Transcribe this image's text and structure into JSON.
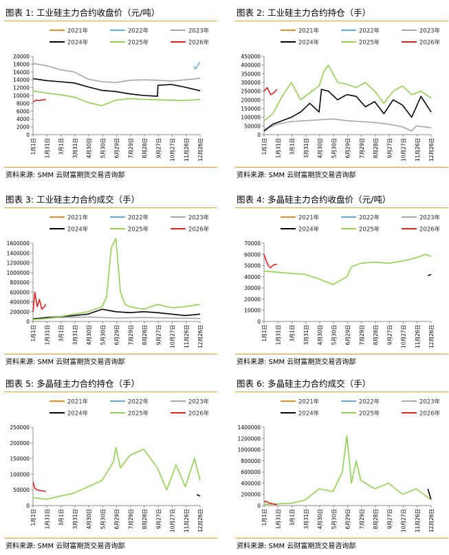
{
  "source_text": "资料来源: SMM 云财富期货交易咨询部",
  "x_ticks": [
    "1月1日",
    "1月31日",
    "3月1日",
    "3月31日",
    "4月30日",
    "5月30日",
    "6月29日",
    "7月29日",
    "8月28日",
    "9月27日",
    "10月27日",
    "11月26日",
    "12月26日"
  ],
  "legend": [
    {
      "name": "2021年",
      "color": "#f08a24"
    },
    {
      "name": "2022年",
      "color": "#6aa7dd"
    },
    {
      "name": "2023年",
      "color": "#a6a6a6"
    },
    {
      "name": "2024年",
      "color": "#000000"
    },
    {
      "name": "2025年",
      "color": "#92d050"
    },
    {
      "name": "2026年",
      "color": "#e01f1f"
    }
  ],
  "charts": [
    {
      "title": "图表 1:  工业硅主力合约收盘价（元/吨）"
    },
    {
      "title": "图表 2:  工业硅主力合约持仓（手）"
    },
    {
      "title": "图表 3:  工业硅主力合约成交（手）"
    },
    {
      "title": "图表 4:  多晶硅主力合约收盘价（元/吨）"
    },
    {
      "title": "图表 5:  多晶硅主力合约持仓（手）"
    },
    {
      "title": "图表 6:  多晶硅主力合约成交（手）"
    }
  ],
  "chart_data": [
    {
      "type": "line",
      "title": "图表 1:  工业硅主力合约收盘价（元/吨）",
      "ylim": [
        0,
        20000
      ],
      "y_ticks": [
        "0",
        "2000",
        "4000",
        "6000",
        "8000",
        "10000",
        "12000",
        "14000",
        "16000",
        "18000",
        "20000"
      ],
      "x_ticks": [
        "1月1日",
        "1月31日",
        "3月1日",
        "3月31日",
        "4月30日",
        "5月30日",
        "6月29日",
        "7月29日",
        "8月28日",
        "9月27日",
        "10月27日",
        "11月26日",
        "12月26日"
      ],
      "series": [
        {
          "name": "2022年",
          "color": "#6aa7dd",
          "x": [
            349,
            352,
            355,
            358,
            361
          ],
          "values": [
            17500,
            16800,
            17200,
            17800,
            18500
          ]
        },
        {
          "name": "2023年",
          "color": "#a6a6a6",
          "x": [
            1,
            30,
            60,
            90,
            120,
            150,
            180,
            210,
            240,
            270,
            300,
            330,
            362
          ],
          "values": [
            18200,
            17600,
            16600,
            16000,
            14200,
            13500,
            13300,
            13900,
            14000,
            13900,
            13700,
            14000,
            14400
          ]
        },
        {
          "name": "2024年",
          "color": "#000000",
          "x": [
            1,
            30,
            60,
            90,
            120,
            150,
            180,
            210,
            240,
            270,
            271,
            300,
            330,
            362
          ],
          "values": [
            14300,
            13800,
            13500,
            13200,
            12200,
            11300,
            11000,
            10400,
            10000,
            9800,
            12600,
            12800,
            12100,
            11200
          ]
        },
        {
          "name": "2025年",
          "color": "#92d050",
          "x": [
            1,
            30,
            60,
            90,
            120,
            150,
            180,
            210,
            240,
            270,
            300,
            330,
            362
          ],
          "values": [
            11200,
            10600,
            10200,
            9600,
            8200,
            7400,
            8800,
            9200,
            9000,
            8900,
            8800,
            8700,
            9000
          ]
        },
        {
          "name": "2026年",
          "color": "#e01f1f",
          "x": [
            1,
            8,
            15,
            22,
            29
          ],
          "values": [
            8400,
            8800,
            8700,
            8900,
            8900
          ]
        }
      ]
    },
    {
      "type": "line",
      "title": "图表 2:  工业硅主力合约持仓（手）",
      "ylim": [
        0,
        450000
      ],
      "y_ticks": [
        "0",
        "50000",
        "100000",
        "150000",
        "200000",
        "250000",
        "300000",
        "350000",
        "400000",
        "450000"
      ],
      "x_ticks": [
        "1月1日",
        "1月31日",
        "3月1日",
        "3月31日",
        "4月30日",
        "5月30日",
        "6月29日",
        "7月29日",
        "8月28日",
        "9月27日",
        "10月27日",
        "11月26日",
        "12月26日"
      ],
      "series": [
        {
          "name": "2023年",
          "color": "#a6a6a6",
          "x": [
            1,
            30,
            60,
            90,
            120,
            150,
            180,
            210,
            240,
            270,
            300,
            320,
            330,
            362
          ],
          "values": [
            30000,
            60000,
            75000,
            80000,
            85000,
            90000,
            80000,
            75000,
            70000,
            60000,
            45000,
            20000,
            50000,
            40000
          ]
        },
        {
          "name": "2024年",
          "color": "#000000",
          "x": [
            1,
            20,
            40,
            60,
            80,
            100,
            120,
            125,
            140,
            160,
            180,
            200,
            220,
            240,
            260,
            280,
            300,
            320,
            340,
            362
          ],
          "values": [
            20000,
            60000,
            80000,
            100000,
            130000,
            180000,
            130000,
            260000,
            250000,
            200000,
            230000,
            220000,
            160000,
            190000,
            120000,
            200000,
            170000,
            100000,
            220000,
            130000
          ]
        },
        {
          "name": "2025年",
          "color": "#92d050",
          "x": [
            1,
            20,
            40,
            60,
            80,
            100,
            120,
            130,
            140,
            160,
            180,
            200,
            220,
            240,
            260,
            280,
            300,
            320,
            340,
            362
          ],
          "values": [
            80000,
            120000,
            220000,
            300000,
            200000,
            240000,
            280000,
            360000,
            400000,
            300000,
            290000,
            270000,
            300000,
            250000,
            180000,
            250000,
            280000,
            230000,
            250000,
            210000
          ]
        },
        {
          "name": "2026年",
          "color": "#e01f1f",
          "x": [
            1,
            8,
            15,
            22,
            29
          ],
          "values": [
            250000,
            270000,
            230000,
            240000,
            260000
          ]
        }
      ]
    },
    {
      "type": "line",
      "title": "图表 3:  工业硅主力合约成交（手）",
      "ylim": [
        0,
        1600000
      ],
      "y_ticks": [
        "0",
        "200000",
        "400000",
        "600000",
        "800000",
        "1000000",
        "1200000",
        "1400000",
        "1600000"
      ],
      "x_ticks": [
        "1月1日",
        "1月31日",
        "3月1日",
        "3月31日",
        "4月30日",
        "5月30日",
        "6月29日",
        "7月29日",
        "8月28日",
        "9月27日",
        "10月27日",
        "11月26日",
        "12月26日"
      ],
      "series": [
        {
          "name": "2023年",
          "color": "#a6a6a6",
          "x": [
            1,
            60,
            120,
            180,
            240,
            300,
            362
          ],
          "values": [
            60000,
            80000,
            90000,
            70000,
            80000,
            70000,
            60000
          ]
        },
        {
          "name": "2024年",
          "color": "#000000",
          "x": [
            1,
            30,
            60,
            90,
            120,
            150,
            180,
            210,
            240,
            270,
            300,
            330,
            362
          ],
          "values": [
            50000,
            80000,
            100000,
            120000,
            150000,
            250000,
            200000,
            180000,
            200000,
            180000,
            150000,
            120000,
            150000
          ]
        },
        {
          "name": "2025年",
          "color": "#92d050",
          "x": [
            1,
            30,
            60,
            90,
            120,
            150,
            160,
            170,
            180,
            190,
            200,
            210,
            240,
            270,
            300,
            330,
            362
          ],
          "values": [
            40000,
            60000,
            100000,
            150000,
            200000,
            300000,
            500000,
            1500000,
            1700000,
            600000,
            350000,
            300000,
            250000,
            350000,
            280000,
            300000,
            350000
          ]
        },
        {
          "name": "2026年",
          "color": "#e01f1f",
          "x": [
            1,
            5,
            10,
            15,
            20,
            25,
            29
          ],
          "values": [
            200000,
            600000,
            300000,
            450000,
            250000,
            300000,
            350000
          ]
        }
      ]
    },
    {
      "type": "line",
      "title": "图表 4:  多晶硅主力合约收盘价（元/吨）",
      "ylim": [
        0,
        70000
      ],
      "y_ticks": [
        "0",
        "10000",
        "20000",
        "30000",
        "40000",
        "50000",
        "60000",
        "70000"
      ],
      "x_ticks": [
        "1月1日",
        "1月31日",
        "3月1日",
        "3月31日",
        "4月30日",
        "5月30日",
        "6月29日",
        "7月29日",
        "8月28日",
        "9月27日",
        "10月27日",
        "11月26日",
        "12月26日"
      ],
      "series": [
        {
          "name": "2024年",
          "color": "#000000",
          "x": [
            355,
            362
          ],
          "values": [
            41000,
            42000
          ]
        },
        {
          "name": "2025年",
          "color": "#92d050",
          "x": [
            1,
            30,
            60,
            90,
            120,
            150,
            180,
            190,
            210,
            240,
            270,
            300,
            330,
            350,
            362
          ],
          "values": [
            45000,
            44000,
            43000,
            42000,
            38000,
            33000,
            40000,
            49000,
            52000,
            53000,
            52000,
            54000,
            57000,
            60000,
            58000
          ]
        },
        {
          "name": "2026年",
          "color": "#e01f1f",
          "x": [
            1,
            5,
            10,
            15,
            20,
            25,
            29
          ],
          "values": [
            60000,
            55000,
            50000,
            48000,
            50000,
            51000,
            51000
          ]
        }
      ]
    },
    {
      "type": "line",
      "title": "图表 5:  多晶硅主力合约持仓（手）",
      "ylim": [
        0,
        250000
      ],
      "y_ticks": [
        "0",
        "50000",
        "100000",
        "150000",
        "200000",
        "250000"
      ],
      "x_ticks": [
        "1月1日",
        "1月31日",
        "3月1日",
        "3月31日",
        "4月30日",
        "5月30日",
        "6月29日",
        "7月29日",
        "8月28日",
        "9月27日",
        "10月27日",
        "11月26日",
        "12月26日"
      ],
      "series": [
        {
          "name": "2024年",
          "color": "#000000",
          "x": [
            355,
            362
          ],
          "values": [
            35000,
            30000
          ]
        },
        {
          "name": "2025年",
          "color": "#92d050",
          "x": [
            1,
            30,
            60,
            90,
            120,
            150,
            175,
            180,
            190,
            210,
            240,
            270,
            290,
            310,
            330,
            350,
            362
          ],
          "values": [
            25000,
            20000,
            30000,
            40000,
            60000,
            80000,
            140000,
            185000,
            120000,
            160000,
            180000,
            120000,
            50000,
            130000,
            60000,
            150000,
            80000
          ]
        },
        {
          "name": "2026年",
          "color": "#e01f1f",
          "x": [
            1,
            5,
            10,
            15,
            20,
            25,
            29
          ],
          "values": [
            75000,
            55000,
            50000,
            48000,
            47000,
            46000,
            45000
          ]
        }
      ]
    },
    {
      "type": "line",
      "title": "图表 6:  多晶硅主力合约成交（手）",
      "ylim": [
        0,
        1400000
      ],
      "y_ticks": [
        "0",
        "200000",
        "400000",
        "600000",
        "800000",
        "1000000",
        "1200000",
        "1400000"
      ],
      "x_ticks": [
        "1月1日",
        "1月31日",
        "3月1日",
        "3月31日",
        "4月30日",
        "5月30日",
        "6月29日",
        "7月29日",
        "8月28日",
        "9月27日",
        "10月27日",
        "11月26日",
        "12月26日"
      ],
      "series": [
        {
          "name": "2024年",
          "color": "#000000",
          "x": [
            355,
            362
          ],
          "values": [
            300000,
            100000
          ]
        },
        {
          "name": "2025年",
          "color": "#92d050",
          "x": [
            1,
            30,
            60,
            90,
            120,
            150,
            170,
            180,
            190,
            200,
            210,
            240,
            270,
            300,
            330,
            362
          ],
          "values": [
            20000,
            30000,
            40000,
            100000,
            300000,
            250000,
            600000,
            1250000,
            400000,
            800000,
            450000,
            300000,
            400000,
            200000,
            300000,
            100000
          ]
        },
        {
          "name": "2026年",
          "color": "#e01f1f",
          "x": [
            1,
            5,
            10,
            15,
            20,
            25,
            29
          ],
          "values": [
            60000,
            80000,
            50000,
            40000,
            30000,
            20000,
            20000
          ]
        }
      ]
    }
  ]
}
